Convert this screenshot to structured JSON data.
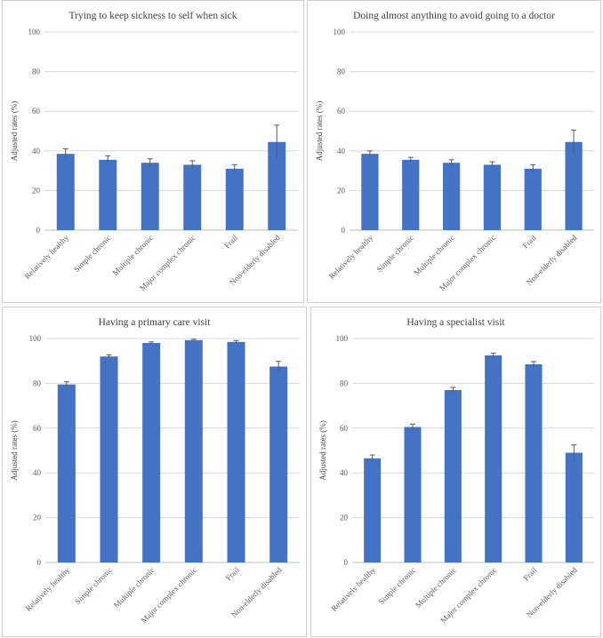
{
  "colors": {
    "bar": "#4472c4"
  },
  "chart_data": [
    {
      "type": "bar",
      "title": "Trying to keep sickness to self when sick",
      "ylabel": "Adjusted rates (%)",
      "ylim": [
        0,
        100
      ],
      "yticks": [
        0,
        20,
        40,
        60,
        80,
        100
      ],
      "categories": [
        "Relatively healthy",
        "Simple chronic",
        "Multiple chronic",
        "Major complex chronic",
        "Frail",
        "Non-elderly disabled"
      ],
      "values": [
        38.5,
        35.5,
        34,
        33,
        31,
        44.5
      ],
      "error": [
        2.5,
        2,
        2,
        2,
        2,
        8.5
      ]
    },
    {
      "type": "bar",
      "title": "Doing almost anything to avoid going to a doctor",
      "ylabel": "Adjusted rates (%)",
      "ylim": [
        0,
        100
      ],
      "yticks": [
        0,
        20,
        40,
        60,
        80,
        100
      ],
      "categories": [
        "Relatively healthy",
        "Simple chronic",
        "Multiple chronic",
        "Major complex chronic",
        "Frail",
        "Non-elderly disabled"
      ],
      "values": [
        38.5,
        35.5,
        34,
        33,
        31,
        44.5
      ],
      "error": [
        1.5,
        1.2,
        1.5,
        1.5,
        2,
        6
      ]
    },
    {
      "type": "bar",
      "title": "Having a primary care visit",
      "ylabel": "Adjusted rates (%)",
      "ylim": [
        0,
        100
      ],
      "yticks": [
        0,
        20,
        40,
        60,
        80,
        100
      ],
      "categories": [
        "Relatively healthy",
        "Simple chronic",
        "Multiple chronic",
        "Major complex chronic",
        "Frail",
        "Non-elderly disabled"
      ],
      "values": [
        79.5,
        92,
        98,
        99.3,
        98.5,
        87.5
      ],
      "error": [
        1.2,
        0.7,
        0.5,
        0.4,
        0.6,
        2.3
      ]
    },
    {
      "type": "bar",
      "title": "Having a specialist visit",
      "ylabel": "Adjusted rates (%)",
      "ylim": [
        0,
        100
      ],
      "yticks": [
        0,
        20,
        40,
        60,
        80,
        100
      ],
      "categories": [
        "Relatively healthy",
        "Simple chronic",
        "Multiple chronic",
        "Major complex chronic",
        "Frail",
        "Non-elderly disabled"
      ],
      "values": [
        46.5,
        60.5,
        77,
        92.5,
        88.5,
        49
      ],
      "error": [
        1.5,
        1.3,
        1.2,
        1,
        1.2,
        3.5
      ]
    }
  ]
}
